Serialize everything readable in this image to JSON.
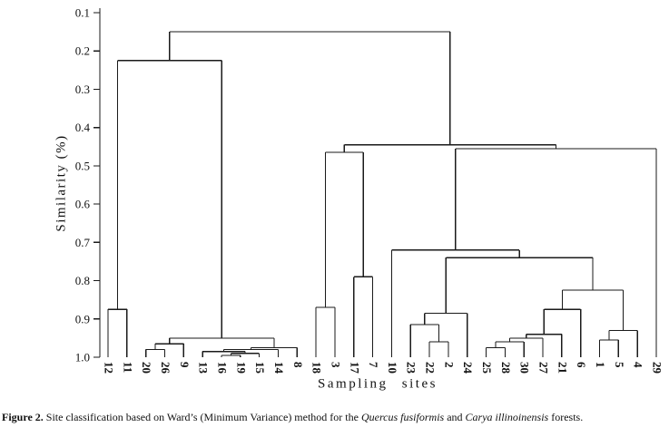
{
  "figure": {
    "line_color": "#1a1a1a",
    "text_color": "#111111",
    "caption": {
      "segments": [
        {
          "text": "Figure 2.",
          "bold": true
        },
        {
          "text": " Site classification based on Ward’s (Minimum Variance) method for the "
        },
        {
          "text": "Quercus fusiformis",
          "italic": true
        },
        {
          "text": " and "
        },
        {
          "text": "Carya illinoinensis",
          "italic": true
        },
        {
          "text": " forests."
        }
      ]
    }
  },
  "chart_data": {
    "type": "dendrogram",
    "title": "",
    "xlabel": "Sampling sites",
    "ylabel": "Similarity (%)",
    "grid": false,
    "legend": false,
    "ylim": [
      0.1,
      1.0
    ],
    "y_axis_direction": "inverted (0.1 at top, 1.0 at bottom, leaves at 1.0)",
    "y_ticks": [
      0.1,
      0.2,
      0.3,
      0.4,
      0.5,
      0.6,
      0.7,
      0.8,
      0.9,
      1.0
    ],
    "y_tick_labels": [
      "0.1",
      "0.2",
      "0.3",
      "0.4",
      "0.5",
      "0.6",
      "0.7",
      "0.8",
      "0.9",
      "1.0"
    ],
    "leaves": [
      "12",
      "11",
      "20",
      "26",
      "9",
      "13",
      "16",
      "19",
      "15",
      "14",
      "8",
      "18",
      "3",
      "17",
      "7",
      "10",
      "23",
      "22",
      "2",
      "24",
      "25",
      "28",
      "30",
      "27",
      "21",
      "6",
      "1",
      "5",
      "4",
      "29"
    ],
    "merges_note": "each merge = [nodeA, nodeB, similarity]; nodes 0-29 are leaves in drawn order, node 30+k is merge k",
    "merges": [
      [
        0,
        1,
        0.875
      ],
      [
        2,
        3,
        0.98
      ],
      [
        31,
        4,
        0.965
      ],
      [
        6,
        7,
        0.995
      ],
      [
        33,
        8,
        0.99
      ],
      [
        5,
        34,
        0.985
      ],
      [
        35,
        9,
        0.98
      ],
      [
        36,
        10,
        0.975
      ],
      [
        32,
        37,
        0.95
      ],
      [
        30,
        38,
        0.225
      ],
      [
        11,
        12,
        0.87
      ],
      [
        13,
        14,
        0.79
      ],
      [
        40,
        41,
        0.465
      ],
      [
        17,
        18,
        0.96
      ],
      [
        16,
        43,
        0.915
      ],
      [
        44,
        19,
        0.885
      ],
      [
        20,
        21,
        0.975
      ],
      [
        46,
        22,
        0.96
      ],
      [
        47,
        23,
        0.95
      ],
      [
        48,
        24,
        0.94
      ],
      [
        49,
        25,
        0.875
      ],
      [
        26,
        27,
        0.955
      ],
      [
        51,
        28,
        0.93
      ],
      [
        50,
        52,
        0.825
      ],
      [
        45,
        53,
        0.74
      ],
      [
        15,
        54,
        0.72
      ],
      [
        55,
        29,
        0.455
      ],
      [
        42,
        56,
        0.445
      ],
      [
        39,
        57,
        0.15
      ]
    ]
  }
}
